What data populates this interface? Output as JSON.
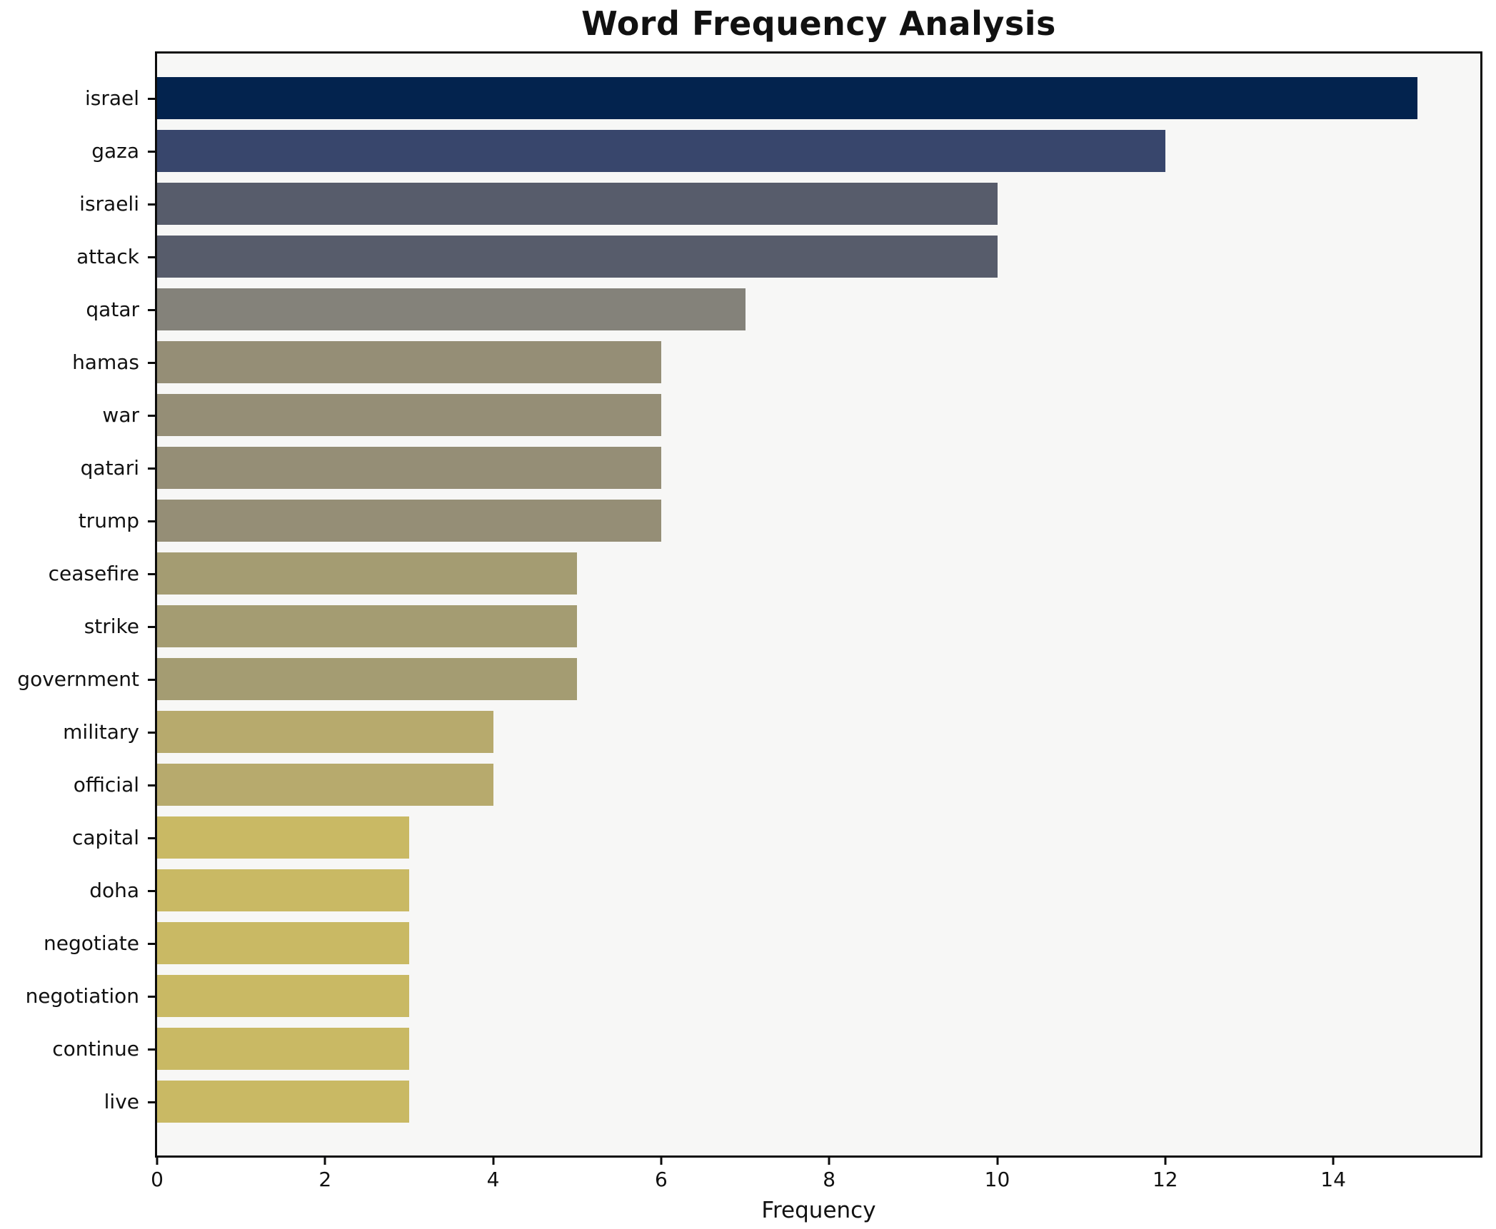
{
  "title": "Word Frequency Analysis",
  "xlabel": "Frequency",
  "colors": {
    "figure_background": "#ffffff",
    "axes_background": "#f7f7f6",
    "spine": "#0c0c0c",
    "text": "#111111"
  },
  "chart_data": {
    "type": "bar",
    "orientation": "horizontal",
    "title": "Word Frequency Analysis",
    "xlabel": "Frequency",
    "ylabel": "",
    "categories": [
      "israel",
      "gaza",
      "israeli",
      "attack",
      "qatar",
      "hamas",
      "war",
      "qatari",
      "trump",
      "ceasefire",
      "strike",
      "government",
      "military",
      "official",
      "capital",
      "doha",
      "negotiate",
      "negotiation",
      "continue",
      "live"
    ],
    "values": [
      15,
      12,
      10,
      10,
      7,
      6,
      6,
      6,
      6,
      5,
      5,
      5,
      4,
      4,
      3,
      3,
      3,
      3,
      3,
      3
    ],
    "bar_colors": [
      "#03234e",
      "#38466c",
      "#575c6b",
      "#575c6b",
      "#84827a",
      "#958e76",
      "#958e76",
      "#958e76",
      "#958e76",
      "#a49c72",
      "#a49c72",
      "#a49c72",
      "#b7aa6d",
      "#b7aa6d",
      "#c9b964",
      "#c9b964",
      "#c9b964",
      "#c9b964",
      "#c9b964",
      "#c9b964"
    ],
    "xlim": [
      0,
      15.75
    ],
    "xticks": [
      0,
      2,
      4,
      6,
      8,
      10,
      12,
      14
    ],
    "grid": false,
    "legend": null,
    "colormap": "cividis"
  }
}
